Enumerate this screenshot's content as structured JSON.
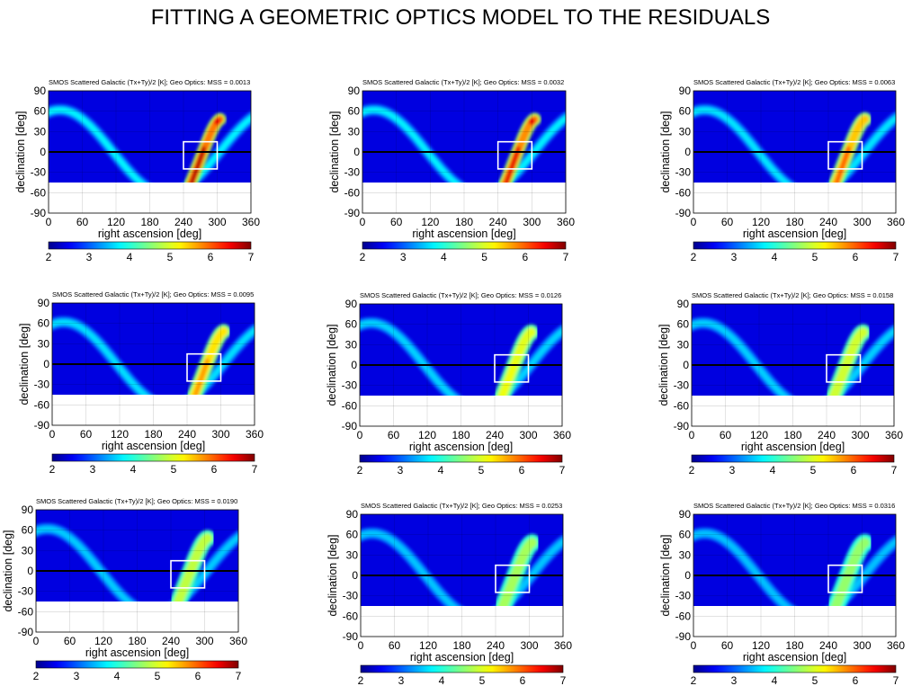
{
  "slide_title": "FITTING A GEOMETRIC OPTICS MODEL TO THE RESIDUALS",
  "colors": {
    "map_low": "#0000c8",
    "map_high": "#8b0000",
    "no_data": "#ffffff",
    "frame": "#000000",
    "box": "#ffffff",
    "equator": "#000000"
  },
  "chart_data": [
    {
      "type": "heatmap",
      "title": "SMOS Scattered Galactic (Tx+Ty)/2 [K]; Geo Optics: MSS = 0.0013",
      "mss": 0.0013,
      "xlabel": "right ascension [deg]",
      "ylabel": "declination [deg]",
      "xlim": [
        0,
        360
      ],
      "ylim": [
        -90,
        90
      ],
      "xticks": [
        "0",
        "60",
        "120",
        "180",
        "240",
        "300",
        "360"
      ],
      "yticks": [
        "90",
        "60",
        "30",
        "0",
        "-30",
        "-60",
        "-90"
      ],
      "colorbar": {
        "range": [
          2,
          7
        ],
        "ticks": [
          "2",
          "3",
          "4",
          "5",
          "6",
          "7"
        ]
      },
      "box": {
        "ra": [
          240,
          300
        ],
        "dec": [
          -25,
          15
        ]
      },
      "data_lower_dec_limit": -45,
      "peak_value": 7
    },
    {
      "type": "heatmap",
      "title": "SMOS Scattered Galactic (Tx+Ty)/2 [K]; Geo Optics: MSS = 0.0032",
      "mss": 0.0032,
      "xlabel": "right ascension [deg]",
      "ylabel": "declination [deg]",
      "xlim": [
        0,
        360
      ],
      "ylim": [
        -90,
        90
      ],
      "xticks": [
        "0",
        "60",
        "120",
        "180",
        "240",
        "300",
        "360"
      ],
      "yticks": [
        "90",
        "60",
        "30",
        "0",
        "-30",
        "-60",
        "-90"
      ],
      "colorbar": {
        "range": [
          2,
          7
        ],
        "ticks": [
          "2",
          "3",
          "4",
          "5",
          "6",
          "7"
        ]
      },
      "box": {
        "ra": [
          240,
          300
        ],
        "dec": [
          -25,
          15
        ]
      },
      "data_lower_dec_limit": -45,
      "peak_value": 6.8
    },
    {
      "type": "heatmap",
      "title": "SMOS Scattered Galactic (Tx+Ty)/2 [K]; Geo Optics: MSS = 0.0063",
      "mss": 0.0063,
      "xlabel": "right ascension [deg]",
      "ylabel": "declination [deg]",
      "xlim": [
        0,
        360
      ],
      "ylim": [
        -90,
        90
      ],
      "xticks": [
        "0",
        "60",
        "120",
        "180",
        "240",
        "300",
        "360"
      ],
      "yticks": [
        "90",
        "60",
        "30",
        "0",
        "-30",
        "-60",
        "-90"
      ],
      "colorbar": {
        "range": [
          2,
          7
        ],
        "ticks": [
          "2",
          "3",
          "4",
          "5",
          "6",
          "7"
        ]
      },
      "box": {
        "ra": [
          240,
          300
        ],
        "dec": [
          -25,
          15
        ]
      },
      "data_lower_dec_limit": -45,
      "peak_value": 6.2
    },
    {
      "type": "heatmap",
      "title": "SMOS Scattered Galactic (Tx+Ty)/2 [K]; Geo Optics: MSS = 0.0095",
      "mss": 0.0095,
      "xlabel": "right ascension [deg]",
      "ylabel": "declination [deg]",
      "xlim": [
        0,
        360
      ],
      "ylim": [
        -90,
        90
      ],
      "xticks": [
        "0",
        "60",
        "120",
        "180",
        "240",
        "300",
        "360"
      ],
      "yticks": [
        "90",
        "60",
        "30",
        "0",
        "-30",
        "-60",
        "-90"
      ],
      "colorbar": {
        "range": [
          2,
          7
        ],
        "ticks": [
          "2",
          "3",
          "4",
          "5",
          "6",
          "7"
        ]
      },
      "box": {
        "ra": [
          240,
          300
        ],
        "dec": [
          -25,
          15
        ]
      },
      "data_lower_dec_limit": -45,
      "peak_value": 5.9
    },
    {
      "type": "heatmap",
      "title": "SMOS Scattered Galactic (Tx+Ty)/2 [K]; Geo Optics: MSS = 0.0126",
      "mss": 0.0126,
      "xlabel": "right ascension [deg]",
      "ylabel": "declination [deg]",
      "xlim": [
        0,
        360
      ],
      "ylim": [
        -90,
        90
      ],
      "xticks": [
        "0",
        "60",
        "120",
        "180",
        "240",
        "300",
        "360"
      ],
      "yticks": [
        "90",
        "60",
        "30",
        "0",
        "-30",
        "-60",
        "-90"
      ],
      "colorbar": {
        "range": [
          2,
          7
        ],
        "ticks": [
          "2",
          "3",
          "4",
          "5",
          "6",
          "7"
        ]
      },
      "box": {
        "ra": [
          240,
          300
        ],
        "dec": [
          -25,
          15
        ]
      },
      "data_lower_dec_limit": -45,
      "peak_value": 5.3
    },
    {
      "type": "heatmap",
      "title": "SMOS Scattered Galactic (Tx+Ty)/2 [K]; Geo Optics: MSS = 0.0158",
      "mss": 0.0158,
      "xlabel": "right ascension [deg]",
      "ylabel": "declination [deg]",
      "xlim": [
        0,
        360
      ],
      "ylim": [
        -90,
        90
      ],
      "xticks": [
        "0",
        "60",
        "120",
        "180",
        "240",
        "300",
        "360"
      ],
      "yticks": [
        "90",
        "60",
        "30",
        "0",
        "-30",
        "-60",
        "-90"
      ],
      "colorbar": {
        "range": [
          2,
          7
        ],
        "ticks": [
          "2",
          "3",
          "4",
          "5",
          "6",
          "7"
        ]
      },
      "box": {
        "ra": [
          240,
          300
        ],
        "dec": [
          -25,
          15
        ]
      },
      "data_lower_dec_limit": -45,
      "peak_value": 5.1
    },
    {
      "type": "heatmap",
      "title": "SMOS Scattered Galactic (Tx+Ty)/2 [K]; Geo Optics: MSS = 0.0190",
      "mss": 0.019,
      "xlabel": "right ascension [deg]",
      "ylabel": "declination [deg]",
      "xlim": [
        0,
        360
      ],
      "ylim": [
        -90,
        90
      ],
      "xticks": [
        "0",
        "60",
        "120",
        "180",
        "240",
        "300",
        "360"
      ],
      "yticks": [
        "90",
        "60",
        "30",
        "0",
        "-30",
        "-60",
        "-90"
      ],
      "colorbar": {
        "range": [
          2,
          7
        ],
        "ticks": [
          "2",
          "3",
          "4",
          "5",
          "6",
          "7"
        ]
      },
      "box": {
        "ra": [
          240,
          300
        ],
        "dec": [
          -25,
          15
        ]
      },
      "data_lower_dec_limit": -45,
      "peak_value": 4.9
    },
    {
      "type": "heatmap",
      "title": "SMOS Scattered Galactic (Tx+Ty)/2 [K]; Geo Optics: MSS = 0.0253",
      "mss": 0.0253,
      "xlabel": "right ascension [deg]",
      "ylabel": "declination [deg]",
      "xlim": [
        0,
        360
      ],
      "ylim": [
        -90,
        90
      ],
      "xticks": [
        "0",
        "60",
        "120",
        "180",
        "240",
        "300",
        "360"
      ],
      "yticks": [
        "90",
        "60",
        "30",
        "0",
        "-30",
        "-60",
        "-90"
      ],
      "colorbar": {
        "range": [
          2,
          7
        ],
        "ticks": [
          "2",
          "3",
          "4",
          "5",
          "6",
          "7"
        ]
      },
      "box": {
        "ra": [
          240,
          300
        ],
        "dec": [
          -25,
          15
        ]
      },
      "data_lower_dec_limit": -45,
      "peak_value": 4.6
    },
    {
      "type": "heatmap",
      "title": "SMOS Scattered Galactic (Tx+Ty)/2 [K]; Geo Optics: MSS = 0.0316",
      "mss": 0.0316,
      "xlabel": "right ascension [deg]",
      "ylabel": "declination [deg]",
      "xlim": [
        0,
        360
      ],
      "ylim": [
        -90,
        90
      ],
      "xticks": [
        "0",
        "60",
        "120",
        "180",
        "240",
        "300",
        "360"
      ],
      "yticks": [
        "90",
        "60",
        "30",
        "0",
        "-30",
        "-60",
        "-90"
      ],
      "colorbar": {
        "range": [
          2,
          7
        ],
        "ticks": [
          "2",
          "3",
          "4",
          "5",
          "6",
          "7"
        ]
      },
      "box": {
        "ra": [
          240,
          300
        ],
        "dec": [
          -25,
          15
        ]
      },
      "data_lower_dec_limit": -45,
      "peak_value": 4.4
    }
  ]
}
